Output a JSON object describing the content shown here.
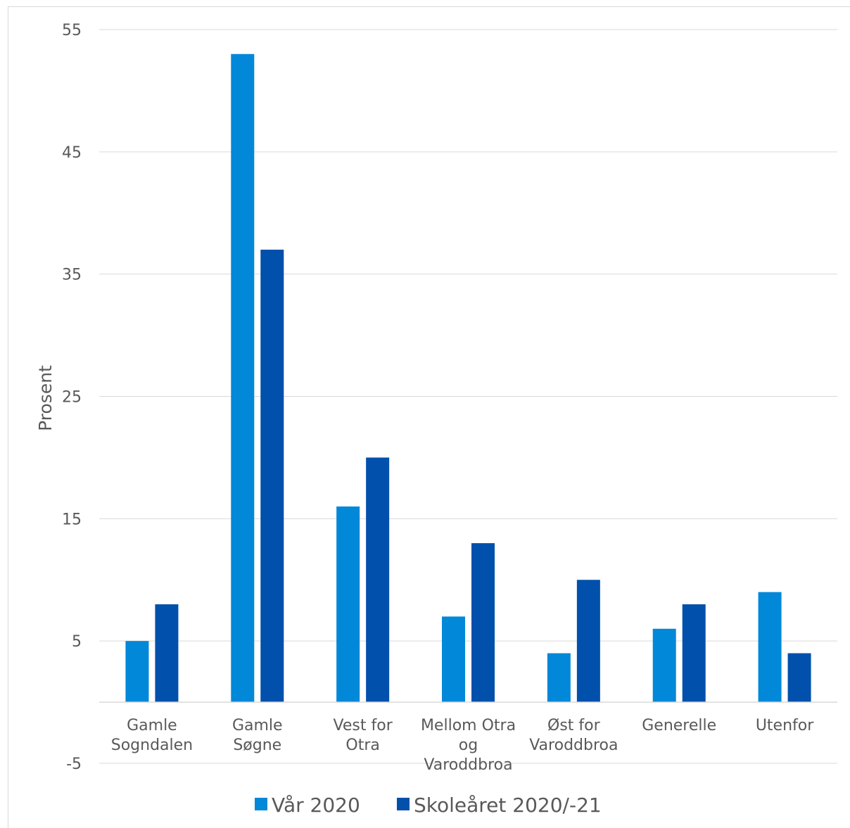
{
  "chart_data": {
    "type": "bar",
    "title": "",
    "xlabel": "",
    "ylabel": "Prosent",
    "ylim": [
      -5,
      55
    ],
    "yticks": [
      55,
      45,
      35,
      25,
      15,
      5,
      -5
    ],
    "grid": true,
    "legend_position": "bottom",
    "categories": [
      [
        "Gamle",
        "Sogndalen"
      ],
      [
        "Gamle",
        "Søgne"
      ],
      [
        "Vest for",
        "Otra"
      ],
      [
        "Mellom Otra",
        "og",
        "Varoddbroa"
      ],
      [
        "Øst for",
        "Varoddbroa"
      ],
      [
        "Generelle"
      ],
      [
        "Utenfor"
      ]
    ],
    "series": [
      {
        "name": "Vår 2020",
        "color": "#0288d8",
        "values": [
          5,
          53,
          16,
          7,
          4,
          6,
          9
        ]
      },
      {
        "name": "Skoleåret 2020/-21",
        "color": "#0050ac",
        "values": [
          8,
          37,
          20,
          13,
          10,
          8,
          4
        ]
      }
    ]
  }
}
